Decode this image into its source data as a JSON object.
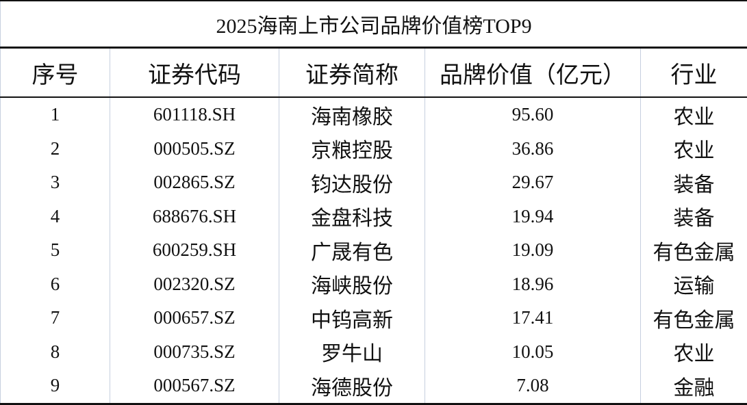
{
  "table": {
    "title": "2025海南上市公司品牌价值榜TOP9",
    "header": [
      "序号",
      "证券代码",
      "证券简称",
      "品牌价值（亿元）",
      "行业"
    ],
    "rows": [
      [
        "1",
        "601118.SH",
        "海南橡胶",
        "95.60",
        "农业"
      ],
      [
        "2",
        "000505.SZ",
        "京粮控股",
        "36.86",
        "农业"
      ],
      [
        "3",
        "002865.SZ",
        "钧达股份",
        "29.67",
        "装备"
      ],
      [
        "4",
        "688676.SH",
        "金盘科技",
        "19.94",
        "装备"
      ],
      [
        "5",
        "600259.SH",
        "广晟有色",
        "19.09",
        "有色金属"
      ],
      [
        "6",
        "002320.SZ",
        "海峡股份",
        "18.96",
        "运输"
      ],
      [
        "7",
        "000657.SZ",
        "中钨高新",
        "17.41",
        "有色金属"
      ],
      [
        "8",
        "000735.SZ",
        "罗牛山",
        "10.05",
        "农业"
      ],
      [
        "9",
        "000567.SZ",
        "海德股份",
        "7.08",
        "金融"
      ]
    ]
  }
}
